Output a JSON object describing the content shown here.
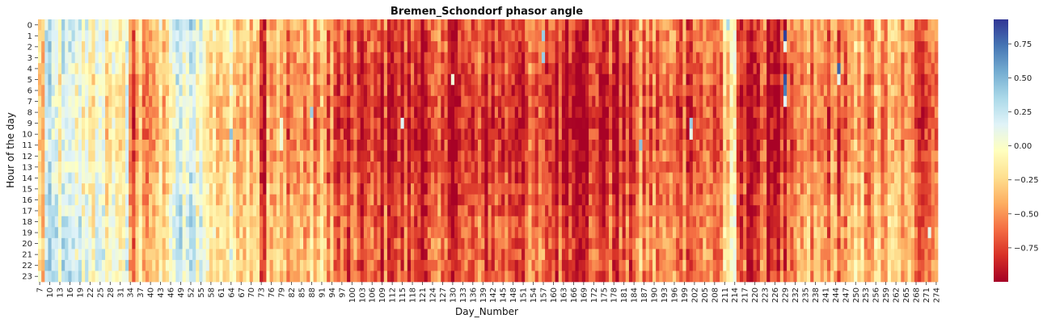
{
  "chart_data": {
    "type": "heatmap",
    "title": "Bremen_Schondorf phasor angle",
    "xlabel": "Day_Number",
    "ylabel": "Hour of the day",
    "x_range": [
      7,
      274
    ],
    "x_tick_step": 3,
    "y_categories": [
      "0",
      "1",
      "2",
      "3",
      "4",
      "5",
      "6",
      "7",
      "8",
      "9",
      "10",
      "11",
      "12",
      "13",
      "14",
      "15",
      "16",
      "17",
      "18",
      "19",
      "20",
      "21",
      "22",
      "23"
    ],
    "colormap": "RdYlBu",
    "colormap_stops": [
      "#a50026",
      "#d73027",
      "#f46d43",
      "#fdae61",
      "#fee090",
      "#ffffbf",
      "#e0f3f8",
      "#abd9e9",
      "#74add1",
      "#4575b4",
      "#313695"
    ],
    "vmin": -1.0,
    "vmax": 0.93,
    "colorbar_ticks": [
      0.75,
      0.5,
      0.25,
      0.0,
      -0.25,
      -0.5,
      -0.75
    ],
    "colorbar_tick_labels": [
      "0.75",
      "0.50",
      "0.25",
      "0.00",
      "−0.25",
      "−0.50",
      "−0.75"
    ],
    "period_profile": [
      {
        "start": 7,
        "end": 8,
        "mean": -0.3
      },
      {
        "start": 9,
        "end": 12,
        "mean": 0.12
      },
      {
        "start": 13,
        "end": 22,
        "mean": 0.05
      },
      {
        "start": 23,
        "end": 33,
        "mean": -0.05
      },
      {
        "start": 34,
        "end": 35,
        "mean": -0.7
      },
      {
        "start": 36,
        "end": 45,
        "mean": -0.35
      },
      {
        "start": 46,
        "end": 56,
        "mean": 0.1
      },
      {
        "start": 57,
        "end": 72,
        "mean": -0.2
      },
      {
        "start": 73,
        "end": 74,
        "mean": -0.75
      },
      {
        "start": 75,
        "end": 94,
        "mean": -0.45
      },
      {
        "start": 95,
        "end": 140,
        "mean": -0.78
      },
      {
        "start": 141,
        "end": 160,
        "mean": -0.7
      },
      {
        "start": 161,
        "end": 183,
        "mean": -0.78
      },
      {
        "start": 184,
        "end": 210,
        "mean": -0.6
      },
      {
        "start": 211,
        "end": 214,
        "mean": -0.25
      },
      {
        "start": 215,
        "end": 232,
        "mean": -0.8
      },
      {
        "start": 233,
        "end": 249,
        "mean": -0.55
      },
      {
        "start": 250,
        "end": 264,
        "mean": -0.45
      },
      {
        "start": 265,
        "end": 274,
        "mean": -0.55
      }
    ],
    "highlight_cells": [
      {
        "day": 229,
        "hour": 1,
        "value": 0.9
      },
      {
        "day": 229,
        "hour": 2,
        "value": 0.1
      },
      {
        "day": 229,
        "hour": 5,
        "value": 0.85
      },
      {
        "day": 229,
        "hour": 6,
        "value": 0.7
      },
      {
        "day": 229,
        "hour": 7,
        "value": 0.15
      },
      {
        "day": 245,
        "hour": 4,
        "value": 0.8
      },
      {
        "day": 245,
        "hour": 5,
        "value": 0.1
      },
      {
        "day": 64,
        "hour": 9,
        "value": 0.0
      },
      {
        "day": 64,
        "hour": 10,
        "value": 0.45
      },
      {
        "day": 79,
        "hour": 9,
        "value": 0.05
      },
      {
        "day": 79,
        "hour": 10,
        "value": 0.05
      },
      {
        "day": 79,
        "hour": 11,
        "value": 0.05
      },
      {
        "day": 88,
        "hour": 8,
        "value": 0.4
      },
      {
        "day": 115,
        "hour": 9,
        "value": 0.15
      },
      {
        "day": 130,
        "hour": 5,
        "value": 0.05
      },
      {
        "day": 186,
        "hour": 11,
        "value": 0.45
      },
      {
        "day": 201,
        "hour": 9,
        "value": 0.4
      },
      {
        "day": 201,
        "hour": 10,
        "value": 0.1
      },
      {
        "day": 157,
        "hour": 1,
        "value": 0.4
      },
      {
        "day": 157,
        "hour": 3,
        "value": 0.4
      },
      {
        "day": 212,
        "hour": 0,
        "value": 0.35
      },
      {
        "day": 272,
        "hour": 19,
        "value": 0.1
      }
    ]
  }
}
